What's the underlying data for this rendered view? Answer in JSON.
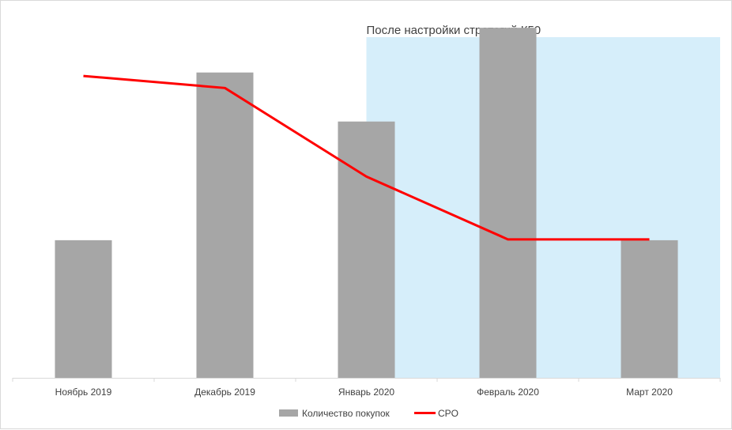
{
  "chart_data": {
    "type": "bar",
    "categories": [
      "Ноябрь 2019",
      "Декабрь 2019",
      "Январь 2020",
      "Февраль 2020",
      "Март 2020"
    ],
    "series": [
      {
        "name": "Количество покупок",
        "type": "bar",
        "values": [
          160,
          355,
          298,
          407,
          160
        ],
        "color": "#a6a6a6"
      },
      {
        "name": "CPO",
        "type": "line",
        "values": [
          351,
          337,
          234,
          161,
          161
        ],
        "color": "#ff0000"
      }
    ],
    "ylim": [
      0,
      420
    ],
    "grid": false,
    "legend": "bottom",
    "highlight": {
      "label": "После настройки стратегий К50",
      "from_category": "Январь 2020",
      "to_category": "Март 2020",
      "color": "#d6eefa"
    }
  }
}
